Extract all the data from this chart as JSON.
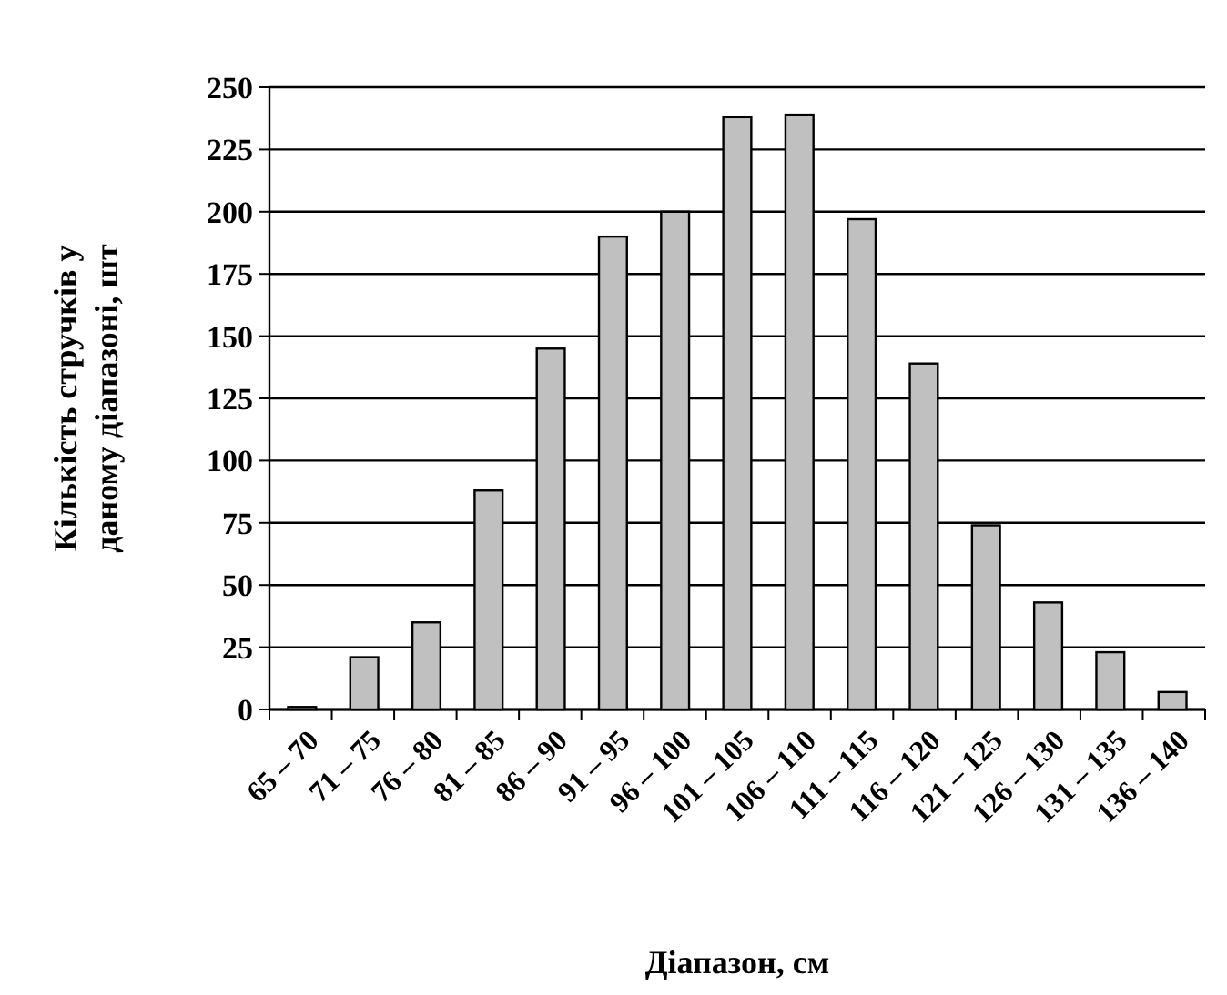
{
  "chart_data": {
    "type": "bar",
    "xlabel": "Діапазон, см",
    "ylabel": "Кількість стручків у\nданому діапазоні, шт",
    "categories": [
      "65 – 70",
      "71 – 75",
      "76 – 80",
      "81 – 85",
      "86 – 90",
      "91 – 95",
      "96 – 100",
      "101 – 105",
      "106 – 110",
      "111 – 115",
      "116 – 120",
      "121 – 125",
      "126 – 130",
      "131 – 135",
      "136 – 140"
    ],
    "values": [
      1,
      21,
      35,
      88,
      145,
      190,
      200,
      238,
      239,
      197,
      139,
      74,
      43,
      23,
      7
    ],
    "color": "#c0c0c0",
    "ylim": [
      0,
      250
    ],
    "yticks": [
      0,
      25,
      50,
      75,
      100,
      125,
      150,
      175,
      200,
      225,
      250
    ],
    "grid": "y"
  }
}
